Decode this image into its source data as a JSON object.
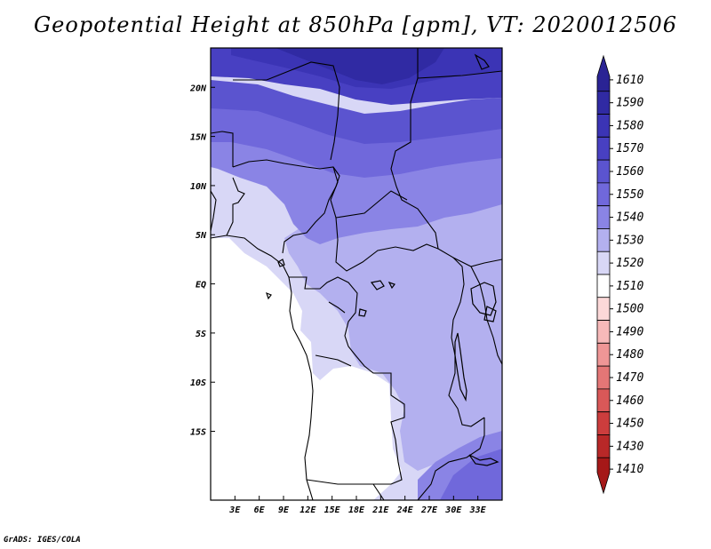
{
  "title": "Geopotential Height at 850hPa [gpm], VT: 2020012506",
  "footer": "GrADS: IGES/COLA",
  "map": {
    "lon_range": [
      0,
      36
    ],
    "lat_range": [
      -22,
      24
    ],
    "lon_ticks": [
      {
        "value": 3,
        "label": "3E"
      },
      {
        "value": 6,
        "label": "6E"
      },
      {
        "value": 9,
        "label": "9E"
      },
      {
        "value": 12,
        "label": "12E"
      },
      {
        "value": 15,
        "label": "15E"
      },
      {
        "value": 18,
        "label": "18E"
      },
      {
        "value": 21,
        "label": "21E"
      },
      {
        "value": 24,
        "label": "24E"
      },
      {
        "value": 27,
        "label": "27E"
      },
      {
        "value": 30,
        "label": "30E"
      },
      {
        "value": 33,
        "label": "33E"
      }
    ],
    "lat_ticks": [
      {
        "value": 20,
        "label": "20N"
      },
      {
        "value": 15,
        "label": "15N"
      },
      {
        "value": 10,
        "label": "10N"
      },
      {
        "value": 5,
        "label": "5N"
      },
      {
        "value": 0,
        "label": "EQ"
      },
      {
        "value": -5,
        "label": "5S"
      },
      {
        "value": -10,
        "label": "10S"
      },
      {
        "value": -15,
        "label": "15S"
      }
    ]
  },
  "colorbar": {
    "levels": [
      {
        "label": "1610",
        "color": "#2a2394"
      },
      {
        "label": "1590",
        "color": "#302aa3"
      },
      {
        "label": "1580",
        "color": "#3b34b5"
      },
      {
        "label": "1570",
        "color": "#4840c2"
      },
      {
        "label": "1560",
        "color": "#5b54cf"
      },
      {
        "label": "1550",
        "color": "#7068db"
      },
      {
        "label": "1540",
        "color": "#8a84e5"
      },
      {
        "label": "1530",
        "color": "#b3b0ef"
      },
      {
        "label": "1520",
        "color": "#d8d7f6"
      },
      {
        "label": "1510",
        "color": "#ffffff"
      },
      {
        "label": "1500",
        "color": "#fcd8d8"
      },
      {
        "label": "1490",
        "color": "#f7b9b9"
      },
      {
        "label": "1480",
        "color": "#ef9696"
      },
      {
        "label": "1470",
        "color": "#e47676"
      },
      {
        "label": "1460",
        "color": "#d95858"
      },
      {
        "label": "1450",
        "color": "#cc3d3d"
      },
      {
        "label": "1430",
        "color": "#b82828"
      },
      {
        "label": "1410",
        "color": "#a51818"
      }
    ]
  }
}
